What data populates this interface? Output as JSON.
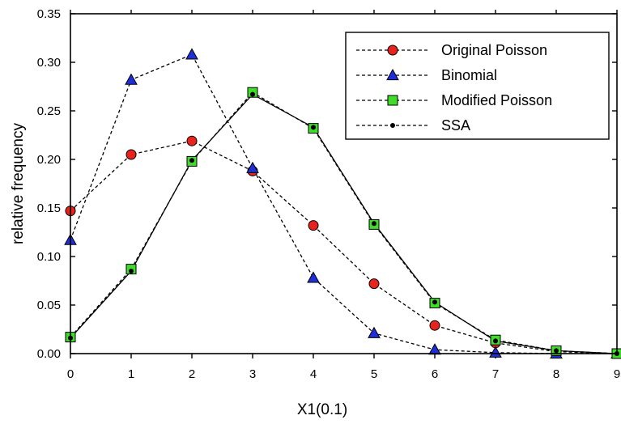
{
  "chart_data": {
    "type": "line",
    "title": "",
    "xlabel": "X1(0.1)",
    "ylabel": "relative frequency",
    "xlim": [
      0,
      9
    ],
    "ylim": [
      0,
      0.35
    ],
    "x_ticks": [
      0,
      1,
      2,
      3,
      4,
      5,
      6,
      7,
      8,
      9
    ],
    "x_tick_labels": [
      "0",
      "1",
      "2",
      "3",
      "4",
      "5",
      "6",
      "7",
      "8",
      "9"
    ],
    "y_ticks": [
      0,
      0.05,
      0.1,
      0.15,
      0.2,
      0.25,
      0.3,
      0.35
    ],
    "y_tick_labels": [
      "0.00",
      "0.05",
      "0.10",
      "0.15",
      "0.20",
      "0.25",
      "0.30",
      "0.35"
    ],
    "grid": false,
    "legend_position": "top-right",
    "x": [
      0,
      1,
      2,
      3,
      4,
      5,
      6,
      7,
      8,
      9
    ],
    "series": [
      {
        "name": "Original Poisson",
        "marker": "circle",
        "color": "#e8231c",
        "line": "dashed",
        "values": [
          0.147,
          0.205,
          0.219,
          0.188,
          0.132,
          0.072,
          0.029,
          0.011,
          0.002,
          0.0
        ]
      },
      {
        "name": "Binomial",
        "marker": "triangle",
        "color": "#1f2fd8",
        "line": "dashed",
        "values": [
          0.117,
          0.282,
          0.308,
          0.191,
          0.078,
          0.021,
          0.004,
          0.001,
          0.0,
          0.0
        ]
      },
      {
        "name": "Modified Poisson",
        "marker": "square",
        "color": "#3fdd2a",
        "line": "dashed",
        "values": [
          0.017,
          0.087,
          0.198,
          0.269,
          0.232,
          0.133,
          0.052,
          0.014,
          0.003,
          0.0
        ]
      },
      {
        "name": "SSA",
        "marker": "dot",
        "color": "#000000",
        "line": "solid",
        "values": [
          0.016,
          0.085,
          0.199,
          0.267,
          0.233,
          0.134,
          0.053,
          0.013,
          0.003,
          0.0
        ]
      }
    ]
  }
}
